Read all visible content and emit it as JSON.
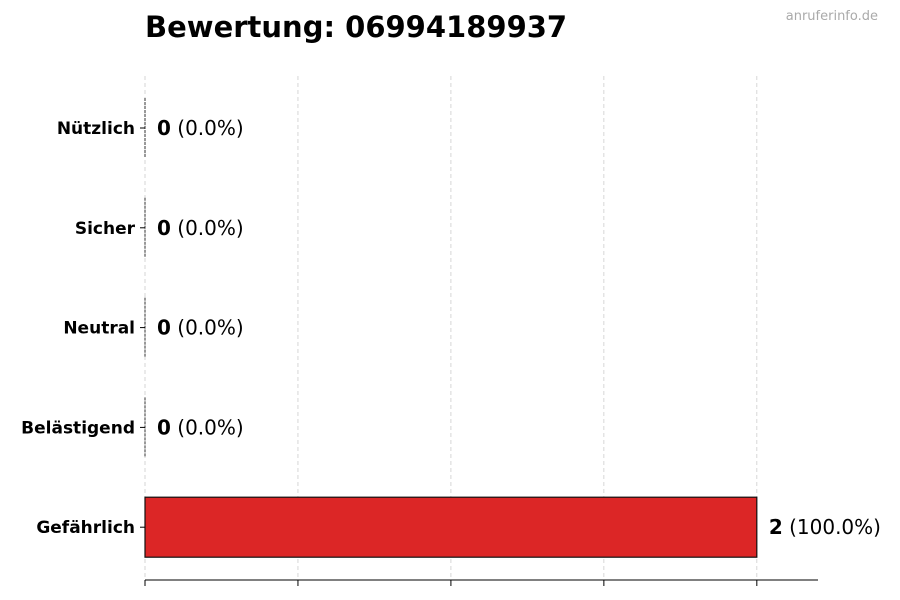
{
  "watermark": "anruferinfo.de",
  "chart_data": {
    "type": "bar",
    "orientation": "horizontal",
    "title": "Bewertung: 06994189937",
    "categories": [
      "Nützlich",
      "Sicher",
      "Neutral",
      "Belästigend",
      "Gefährlich"
    ],
    "values": [
      0,
      0,
      0,
      0,
      2
    ],
    "value_labels": [
      "0",
      "0",
      "0",
      "0",
      "2"
    ],
    "percent_labels": [
      "(0.0%)",
      "(0.0%)",
      "(0.0%)",
      "(0.0%)",
      "(100.0%)"
    ],
    "colors": [
      "#2e9e4f",
      "#7dc242",
      "#999999",
      "#f0a030",
      "#dc2626"
    ],
    "xlim": [
      0,
      2.2
    ],
    "xticks": [
      0,
      0.5,
      1,
      1.5,
      2
    ],
    "grid": "vertical dashed",
    "xlabel": "",
    "ylabel": ""
  }
}
